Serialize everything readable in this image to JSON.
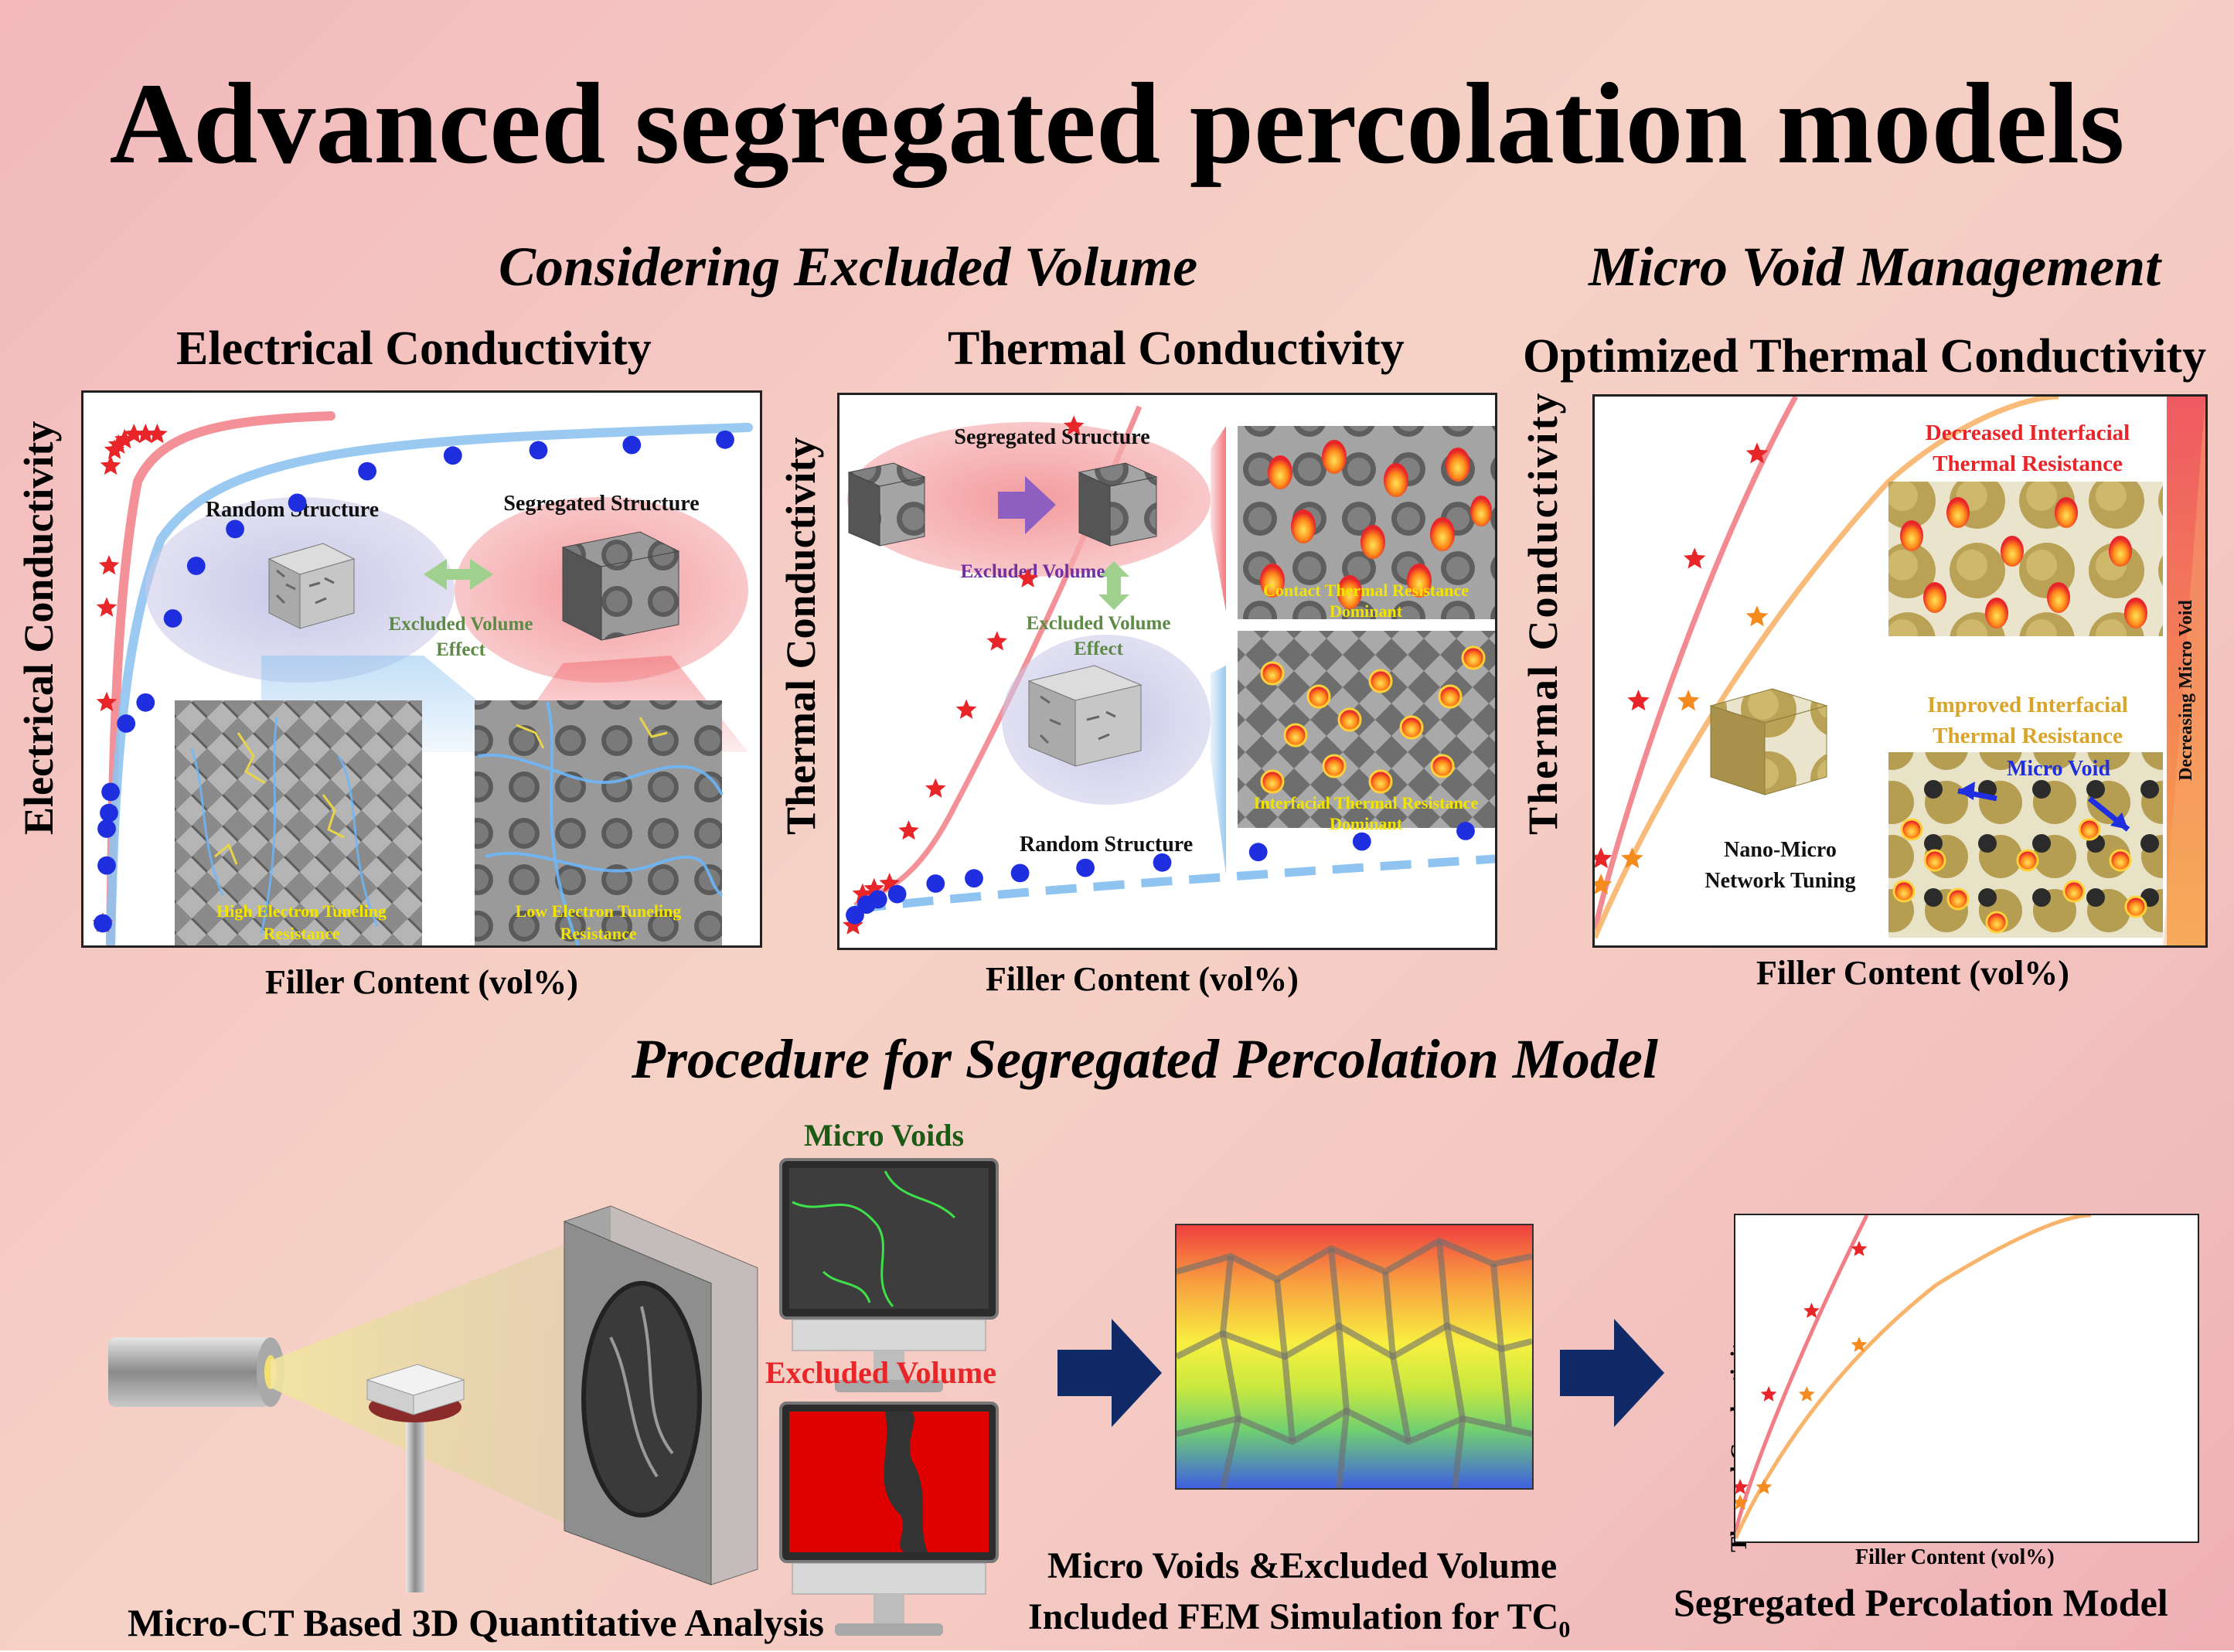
{
  "title": "Advanced segregated percolation models",
  "sections": {
    "excluded_volume": "Considering Excluded Volume",
    "micro_void": "Micro Void Management",
    "procedure": "Procedure for Segregated Percolation Model"
  },
  "panel_ec": {
    "heading": "Electrical Conductivity",
    "ylabel": "Electrical Conductivity",
    "xlabel": "Filler Content (vol%)",
    "random_label": "Random Structure",
    "segregated_label": "Segregated Structure",
    "excluded_effect": [
      "Excluded Volume",
      "Effect"
    ],
    "high_tunnel": [
      "High Electron Tuneling",
      "Resistance"
    ],
    "low_tunnel": [
      "Low Electron Tuneling",
      "Resistance"
    ]
  },
  "panel_tc": {
    "heading": "Thermal Conductivity",
    "ylabel": "Thermal Conductivity",
    "xlabel": "Filler Content (vol%)",
    "segregated_label": "Segregated Structure",
    "excluded_volume_arrow": "Excluded Volume",
    "excluded_effect": [
      "Excluded Volume",
      "Effect"
    ],
    "random_label": "Random Structure",
    "contact": [
      "Contact Thermal Resistance",
      "Dominant"
    ],
    "interfacial": [
      "Interfacial Thermal Resistance",
      "Dominant"
    ]
  },
  "panel_opt": {
    "heading": "Optimized Thermal Conductivity",
    "ylabel": "Thermal Conductivity",
    "xlabel": "Filler Content (vol%)",
    "decreased": [
      "Decreased Interfacial",
      "Thermal Resistance"
    ],
    "improved": [
      "Improved Interfacial",
      "Thermal Resistance"
    ],
    "micro_void": "Micro Void",
    "decreasing": "Decreasing Micro Void",
    "network": [
      "Nano-Micro",
      "Network Tuning"
    ]
  },
  "procedure": {
    "microct_caption": "Micro-CT Based 3D Quantitative Analysis",
    "micro_voids_label": "Micro Voids",
    "excluded_volume_label": "Excluded Volume",
    "fem_caption_1": "Micro Voids &Excluded Volume",
    "fem_caption_2": "Included FEM Simulation for TC",
    "fem_subscript": "0",
    "model_caption": "Segregated Percolation Model",
    "mini_ylabel": "Thermal Conductivity",
    "mini_xlabel": "Filler Content (vol%)"
  },
  "colors": {
    "red": "#e8262a",
    "blue": "#1f2fe0",
    "light_blue": "#8fc4f0",
    "orange": "#f58a1e",
    "navy": "#0f2a66",
    "green_label": "#2b6a1e",
    "purple_label": "#7030a0",
    "yellow_label": "#f2e400"
  },
  "chart_data": [
    {
      "type": "scatter",
      "title": "Electrical Conductivity",
      "xlabel": "Filler Content (vol%)",
      "ylabel": "Electrical Conductivity",
      "x_ticks": false,
      "y_ticks": false,
      "series": [
        {
          "marker": "star",
          "color": "#e8262a",
          "points": [
            [
              0.0,
              0.02
            ],
            [
              0.05,
              0.44
            ],
            [
              0.05,
              0.62
            ],
            [
              0.08,
              0.7
            ],
            [
              0.1,
              0.89
            ],
            [
              0.15,
              0.92
            ],
            [
              0.2,
              0.93
            ],
            [
              0.28,
              0.94
            ],
            [
              0.4,
              0.95
            ],
            [
              0.55,
              0.95
            ],
            [
              0.7,
              0.95
            ]
          ]
        },
        {
          "marker": "circle",
          "color": "#1f2fe0",
          "points": [
            [
              0.0,
              0.02
            ],
            [
              0.05,
              0.13
            ],
            [
              0.05,
              0.2
            ],
            [
              0.08,
              0.23
            ],
            [
              0.1,
              0.27
            ],
            [
              0.3,
              0.4
            ],
            [
              0.55,
              0.44
            ],
            [
              0.9,
              0.6
            ],
            [
              1.2,
              0.7
            ],
            [
              1.7,
              0.77
            ],
            [
              2.5,
              0.82
            ],
            [
              3.4,
              0.88
            ],
            [
              4.5,
              0.91
            ],
            [
              5.6,
              0.92
            ],
            [
              6.8,
              0.93
            ],
            [
              8.0,
              0.94
            ]
          ]
        }
      ]
    },
    {
      "type": "scatter",
      "title": "Thermal Conductivity",
      "xlabel": "Filler Content (vol%)",
      "ylabel": "Thermal Conductivity",
      "series": [
        {
          "marker": "star",
          "color": "#e8262a",
          "points": [
            [
              0.05,
              0.02
            ],
            [
              0.3,
              0.08
            ],
            [
              0.6,
              0.09
            ],
            [
              1.0,
              0.1
            ],
            [
              1.5,
              0.2
            ],
            [
              2.2,
              0.28
            ],
            [
              3.0,
              0.43
            ],
            [
              3.8,
              0.56
            ],
            [
              4.6,
              0.68
            ],
            [
              5.8,
              0.97
            ]
          ]
        },
        {
          "marker": "circle",
          "color": "#1f2fe0",
          "points": [
            [
              0.1,
              0.04
            ],
            [
              0.4,
              0.06
            ],
            [
              0.7,
              0.07
            ],
            [
              1.2,
              0.08
            ],
            [
              2.2,
              0.1
            ],
            [
              3.2,
              0.11
            ],
            [
              4.4,
              0.12
            ],
            [
              6.1,
              0.13
            ],
            [
              8.1,
              0.14
            ],
            [
              10.6,
              0.16
            ],
            [
              13.3,
              0.18
            ],
            [
              16.0,
              0.2
            ]
          ]
        }
      ]
    },
    {
      "type": "line",
      "title": "Optimized Thermal Conductivity",
      "xlabel": "Filler Content (vol%)",
      "ylabel": "Thermal Conductivity",
      "series": [
        {
          "marker": "star",
          "color": "#e8262a",
          "points": [
            [
              0.1,
              0.15
            ],
            [
              0.7,
              0.45
            ],
            [
              1.6,
              0.72
            ],
            [
              2.6,
              0.92
            ]
          ]
        },
        {
          "marker": "star",
          "color": "#f58a1e",
          "points": [
            [
              0.1,
              0.1
            ],
            [
              0.6,
              0.15
            ],
            [
              1.5,
              0.45
            ],
            [
              2.6,
              0.61
            ]
          ]
        }
      ]
    }
  ]
}
